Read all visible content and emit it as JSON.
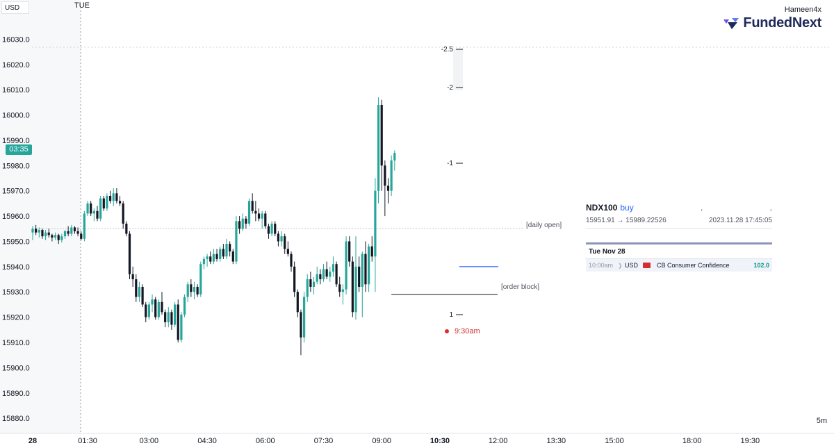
{
  "header": {
    "currency": "USD",
    "day": "TUE",
    "brand_user": "Hameen4x",
    "brand_prefix": "Funded",
    "brand_suffix": "Next"
  },
  "badges": {
    "time_remaining": "03:35",
    "interval": "5m"
  },
  "annotations": {
    "daily_open": "[daily open]",
    "order_block": "[order block]",
    "session": "9:30am",
    "daily_open_level": 15955.0,
    "order_block_level": 15929.0,
    "breaker_level": 15940.0
  },
  "trade": {
    "symbol": "NDX100",
    "direction": "buy",
    "dot1": ".",
    "dot2": ".",
    "range": "15951.91 → 15989.22526",
    "timestamp": "2023.11.28 17:45:05"
  },
  "calendar": {
    "date": "Tue Nov 28",
    "time": "10:00am",
    "currency": "USD",
    "event": "CB Consumer Confidence",
    "value": "102.0"
  },
  "colors": {
    "up": "#26a69a",
    "down": "#131722",
    "accent": "#2962ff",
    "session": "#d32f2f"
  },
  "chart_data": {
    "type": "candlestick",
    "timeframe": "5m",
    "ylim": [
      15874,
      16040
    ],
    "y_ticks": [
      16030.0,
      16020.0,
      16010.0,
      16000.0,
      15990.0,
      15980.0,
      15970.0,
      15960.0,
      15950.0,
      15940.0,
      15930.0,
      15920.0,
      15910.0,
      15900.0,
      15890.0,
      15880.0
    ],
    "x_ticks": [
      {
        "label": "28",
        "bold": true,
        "index": 0
      },
      {
        "label": "01:30",
        "bold": false,
        "index": 17
      },
      {
        "label": "03:00",
        "bold": false,
        "index": 36
      },
      {
        "label": "04:30",
        "bold": false,
        "index": 54
      },
      {
        "label": "06:00",
        "bold": false,
        "index": 72
      },
      {
        "label": "07:30",
        "bold": false,
        "index": 90
      },
      {
        "label": "09:00",
        "bold": false,
        "index": 108
      },
      {
        "label": "10:30",
        "bold": true,
        "index": 126
      },
      {
        "label": "12:00",
        "bold": false,
        "index": 144
      },
      {
        "label": "13:30",
        "bold": false,
        "index": 162
      },
      {
        "label": "15:00",
        "bold": false,
        "index": 180
      },
      {
        "label": "18:00",
        "bold": false,
        "index": 204
      },
      {
        "label": "19:30",
        "bold": false,
        "index": 222
      }
    ],
    "candles": [
      [
        15953.5,
        15956.0,
        15950.5,
        15955.0
      ],
      [
        15955.0,
        15956.5,
        15952.5,
        15953.5
      ],
      [
        15953.5,
        15955.5,
        15951.5,
        15954.5
      ],
      [
        15954.5,
        15955.0,
        15951.0,
        15952.0
      ],
      [
        15952.0,
        15954.5,
        15950.5,
        15953.5
      ],
      [
        15953.5,
        15955.0,
        15951.5,
        15952.5
      ],
      [
        15952.5,
        15953.0,
        15950.0,
        15951.5
      ],
      [
        15951.5,
        15953.5,
        15950.5,
        15952.5
      ],
      [
        15952.5,
        15953.0,
        15949.0,
        15950.5
      ],
      [
        15950.5,
        15953.0,
        15949.5,
        15952.0
      ],
      [
        15952.0,
        15954.5,
        15951.0,
        15954.0
      ],
      [
        15954.0,
        15956.0,
        15952.0,
        15953.0
      ],
      [
        15953.0,
        15956.5,
        15952.0,
        15955.5
      ],
      [
        15955.5,
        15956.0,
        15953.0,
        15954.0
      ],
      [
        15954.0,
        15955.5,
        15952.0,
        15953.0
      ],
      [
        15953.0,
        15954.0,
        15950.5,
        15951.0
      ],
      [
        15951.0,
        15962.0,
        15950.0,
        15961.0
      ],
      [
        15961.0,
        15966.0,
        15960.0,
        15965.0
      ],
      [
        15965.0,
        15966.0,
        15960.0,
        15961.0
      ],
      [
        15961.0,
        15963.0,
        15958.0,
        15962.0
      ],
      [
        15962.0,
        15964.0,
        15958.0,
        15959.0
      ],
      [
        15959.0,
        15968.0,
        15958.0,
        15967.0
      ],
      [
        15967.0,
        15968.0,
        15962.0,
        15963.0
      ],
      [
        15963.0,
        15969.0,
        15962.0,
        15968.0
      ],
      [
        15968.0,
        15970.0,
        15965.0,
        15966.0
      ],
      [
        15966.0,
        15971.0,
        15964.0,
        15969.0
      ],
      [
        15969.0,
        15971.0,
        15965.0,
        15966.0
      ],
      [
        15966.0,
        15968.0,
        15964.0,
        15965.0
      ],
      [
        15965.0,
        15966.0,
        15955.0,
        15957.0
      ],
      [
        15957.0,
        15958.0,
        15952.0,
        15953.0
      ],
      [
        15953.0,
        15954.0,
        15935.0,
        15937.0
      ],
      [
        15937.0,
        15940.0,
        15932.0,
        15935.0
      ],
      [
        15935.0,
        15937.0,
        15926.0,
        15928.0
      ],
      [
        15928.0,
        15934.0,
        15926.0,
        15932.0
      ],
      [
        15932.0,
        15933.0,
        15924.0,
        15925.0
      ],
      [
        15925.0,
        15926.0,
        15918.0,
        15920.0
      ],
      [
        15920.0,
        15926.0,
        15919.0,
        15925.0
      ],
      [
        15925.0,
        15929.0,
        15922.0,
        15927.0
      ],
      [
        15927.0,
        15928.0,
        15919.0,
        15920.0
      ],
      [
        15920.0,
        15927.0,
        15919.0,
        15926.0
      ],
      [
        15926.0,
        15930.0,
        15921.0,
        15922.0
      ],
      [
        15922.0,
        15923.0,
        15916.0,
        15918.0
      ],
      [
        15918.0,
        15924.0,
        15916.0,
        15922.0
      ],
      [
        15922.0,
        15923.0,
        15915.0,
        15917.0
      ],
      [
        15917.0,
        15926.0,
        15916.0,
        15925.0
      ],
      [
        15925.0,
        15927.0,
        15910.0,
        15911.0
      ],
      [
        15911.0,
        15922.0,
        15910.0,
        15921.0
      ],
      [
        15921.0,
        15929.0,
        15920.0,
        15928.0
      ],
      [
        15928.0,
        15934.0,
        15926.0,
        15933.0
      ],
      [
        15933.0,
        15935.0,
        15928.0,
        15930.0
      ],
      [
        15930.0,
        15934.0,
        15927.0,
        15932.0
      ],
      [
        15932.0,
        15933.0,
        15928.0,
        15929.0
      ],
      [
        15929.0,
        15942.0,
        15928.0,
        15941.0
      ],
      [
        15941.0,
        15944.0,
        15939.0,
        15943.0
      ],
      [
        15943.0,
        15945.0,
        15940.0,
        15944.0
      ],
      [
        15944.0,
        15946.0,
        15941.0,
        15942.0
      ],
      [
        15942.0,
        15947.0,
        15941.0,
        15945.0
      ],
      [
        15945.0,
        15947.0,
        15942.0,
        15943.0
      ],
      [
        15943.0,
        15948.0,
        15942.0,
        15947.0
      ],
      [
        15947.0,
        15949.0,
        15943.0,
        15944.0
      ],
      [
        15944.0,
        15951.0,
        15943.0,
        15949.0
      ],
      [
        15949.0,
        15950.0,
        15944.0,
        15946.0
      ],
      [
        15946.0,
        15947.0,
        15941.0,
        15942.0
      ],
      [
        15942.0,
        15960.0,
        15941.0,
        15958.0
      ],
      [
        15958.0,
        15960.0,
        15953.0,
        15955.0
      ],
      [
        15955.0,
        15961.0,
        15954.0,
        15959.0
      ],
      [
        15959.0,
        15960.0,
        15955.0,
        15957.0
      ],
      [
        15957.0,
        15967.0,
        15956.0,
        15966.0
      ],
      [
        15966.0,
        15969.0,
        15961.0,
        15962.0
      ],
      [
        15962.0,
        15966.0,
        15958.0,
        15961.0
      ],
      [
        15961.0,
        15963.0,
        15958.0,
        15959.0
      ],
      [
        15959.0,
        15962.0,
        15955.0,
        15961.0
      ],
      [
        15961.0,
        15962.0,
        15955.0,
        15956.0
      ],
      [
        15956.0,
        15957.0,
        15951.0,
        15953.0
      ],
      [
        15953.0,
        15958.0,
        15952.0,
        15957.0
      ],
      [
        15957.0,
        15958.0,
        15952.0,
        15953.0
      ],
      [
        15953.0,
        15954.0,
        15948.0,
        15950.0
      ],
      [
        15950.0,
        15954.0,
        15948.0,
        15952.0
      ],
      [
        15952.0,
        15953.0,
        15945.0,
        15947.0
      ],
      [
        15947.0,
        15950.0,
        15944.0,
        15945.0
      ],
      [
        15945.0,
        15946.0,
        15938.0,
        15940.0
      ],
      [
        15940.0,
        15942.0,
        15928.0,
        15930.0
      ],
      [
        15930.0,
        15931.0,
        15920.0,
        15922.0
      ],
      [
        15922.0,
        15923.0,
        15905.0,
        15912.0
      ],
      [
        15912.0,
        15930.0,
        15910.0,
        15928.0
      ],
      [
        15928.0,
        15937.0,
        15926.0,
        15935.0
      ],
      [
        15935.0,
        15938.0,
        15930.0,
        15932.0
      ],
      [
        15932.0,
        15936.0,
        15929.0,
        15934.0
      ],
      [
        15934.0,
        15940.0,
        15933.0,
        15937.0
      ],
      [
        15937.0,
        15939.0,
        15933.0,
        15935.0
      ],
      [
        15935.0,
        15941.0,
        15934.0,
        15939.0
      ],
      [
        15939.0,
        15942.0,
        15935.0,
        15936.0
      ],
      [
        15936.0,
        15940.0,
        15934.0,
        15938.0
      ],
      [
        15938.0,
        15944.0,
        15936.0,
        15941.0
      ],
      [
        15941.0,
        15942.0,
        15932.0,
        15933.0
      ],
      [
        15933.0,
        15936.0,
        15928.0,
        15930.0
      ],
      [
        15930.0,
        15933.0,
        15925.0,
        15931.0
      ],
      [
        15931.0,
        15952.0,
        15929.0,
        15950.0
      ],
      [
        15950.0,
        15952.0,
        15940.0,
        15942.0
      ],
      [
        15942.0,
        15944.0,
        15920.0,
        15922.0
      ],
      [
        15922.0,
        15952.0,
        15919.0,
        15940.0
      ],
      [
        15940.0,
        15944.0,
        15930.0,
        15932.0
      ],
      [
        15932.0,
        15946.0,
        15920.0,
        15945.0
      ],
      [
        15945.0,
        15950.0,
        15930.0,
        15933.0
      ],
      [
        15933.0,
        15949.0,
        15930.0,
        15948.0
      ],
      [
        15948.0,
        15952.0,
        15942.0,
        15944.0
      ],
      [
        15944.0,
        15975.0,
        15930.0,
        15970.0
      ],
      [
        15970.0,
        16007.0,
        15965.0,
        16004.0
      ],
      [
        16004.0,
        16006.0,
        15970.0,
        15980.0
      ],
      [
        15980.0,
        15982.0,
        15960.0,
        15972.0
      ],
      [
        15972.0,
        15975.0,
        15965.0,
        15970.0
      ],
      [
        15970.0,
        15984.0,
        15968.0,
        15982.0
      ],
      [
        15982.0,
        15986.0,
        15978.0,
        15985.0
      ]
    ],
    "oscillator_ticks": [
      -2.5,
      -2,
      -1,
      1
    ]
  }
}
